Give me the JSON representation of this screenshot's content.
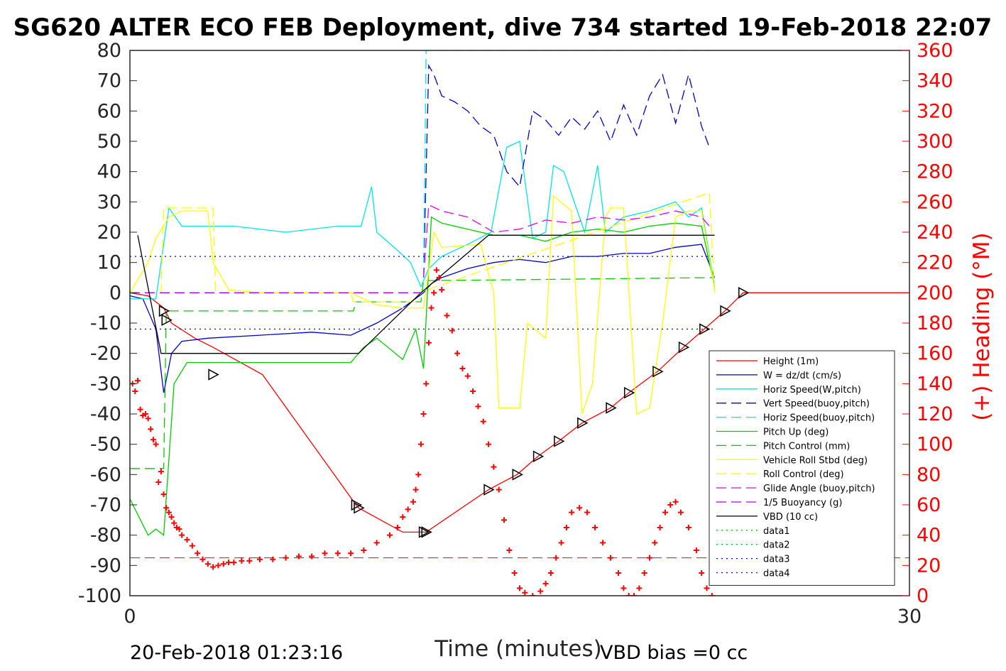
{
  "chart_data": {
    "type": "line",
    "title": "SG620 ALTER ECO FEB Deployment, dive 734 started 19-Feb-2018 22:07",
    "xlabel": "Time (minutes)",
    "ylabel_right": "(+) Heading (°M)",
    "xlim": [
      0,
      30
    ],
    "ylim_left": [
      -100,
      80
    ],
    "ylim_right": [
      0,
      360
    ],
    "x_ticks": [
      "0",
      "30"
    ],
    "y_ticks_left": [
      "80",
      "70",
      "60",
      "50",
      "40",
      "30",
      "20",
      "10",
      "0",
      "-10",
      "-20",
      "-30",
      "-40",
      "-50",
      "-60",
      "-70",
      "-80",
      "-90",
      "-100"
    ],
    "y_ticks_right": [
      "360",
      "340",
      "320",
      "300",
      "280",
      "260",
      "240",
      "220",
      "200",
      "180",
      "160",
      "140",
      "120",
      "100",
      "80",
      "60",
      "40",
      "20",
      "0"
    ],
    "footer_left": "20-Feb-2018 01:23:16",
    "footer_right": "VBD bias =0 cc",
    "legend": [
      "Height (1m)",
      "W = dz/dt (cm/s)",
      "Horiz Speed(W,pitch)",
      "Vert Speed(buoy,pitch)",
      "Horiz Speed(buoy,pitch)",
      "Pitch Up (deg)",
      "Pitch Control (mm)",
      "Vehicle Roll Stbd (deg)",
      "Roll Control (deg)",
      "Glide Angle (buoy,pitch)",
      "1/5 Buoyancy (g)",
      "VBD (10 cc)",
      "data1",
      "data2",
      "data3",
      "data4"
    ],
    "series": [
      {
        "name": "Height (1m)",
        "color": "#ff0000",
        "style": "solid",
        "x": [
          0,
          0.7,
          1.3,
          1.6,
          2.5,
          3.2,
          5.1,
          8.7,
          8.8,
          10.5,
          11.4,
          13.8,
          14.9,
          15.7,
          16.5,
          17.4,
          18.5,
          19.2,
          20.3,
          21.3,
          22.1,
          22.9,
          23.6,
          24.5,
          25.3,
          26.0,
          26.8,
          28.0,
          29.6,
          30.0
        ],
        "y": [
          0,
          -1,
          -5,
          -10,
          -15,
          -18,
          -27,
          -70,
          -71,
          -79,
          -79,
          -65,
          -60,
          -54,
          -49,
          -43,
          -38,
          -33,
          -26,
          -18,
          -12,
          -6,
          0,
          0,
          0,
          0,
          0,
          0,
          0,
          0
        ]
      },
      {
        "name": "W = dz/dt (cm/s)",
        "color": "#0000cc",
        "style": "solid",
        "x": [
          0,
          0.5,
          1.0,
          1.3,
          1.6,
          2.0,
          3.0,
          5.0,
          7.0,
          8.5,
          9.5,
          10.5,
          11.3,
          11.6,
          12.0,
          13.0,
          14.0,
          15.0,
          16.0,
          17.0,
          18.0,
          19.0,
          20.0,
          21.0,
          22.0,
          22.5
        ],
        "y": [
          -1,
          -2,
          -12,
          -33,
          -20,
          -16,
          -15,
          -14,
          -13,
          -14,
          -10,
          -5,
          0,
          3,
          5,
          8,
          10,
          11,
          10,
          12,
          12,
          13,
          13,
          15,
          16,
          5
        ]
      },
      {
        "name": "Horiz Speed(W,pitch)",
        "color": "#00e5e5",
        "style": "solid",
        "x": [
          0,
          1.0,
          1.5,
          2.0,
          4.0,
          6.0,
          8.0,
          8.9,
          9.3,
          9.5,
          10.3,
          10.8,
          11.2,
          11.5,
          12.0,
          13.0,
          13.9,
          14.5,
          15.0,
          15.5,
          16.0,
          16.3,
          16.7,
          17.5,
          18.0,
          18.3,
          19.0,
          20.0,
          21.0,
          21.5,
          22.0,
          22.5
        ],
        "y": [
          -2,
          -2,
          28,
          22,
          22,
          20,
          22,
          22,
          35,
          20,
          14,
          10,
          2,
          8,
          12,
          16,
          20,
          48,
          50,
          18,
          20,
          42,
          40,
          20,
          42,
          20,
          25,
          27,
          30,
          25,
          28,
          2
        ]
      },
      {
        "name": "Vert Speed(buoy,pitch)",
        "color": "#0000cc",
        "style": "dashed",
        "x": [
          11.3,
          11.5,
          11.7,
          12.0,
          12.5,
          13.0,
          13.5,
          14.0,
          14.5,
          15.0,
          15.5,
          16.0,
          16.5,
          17.0,
          17.5,
          18.0,
          18.5,
          19.0,
          19.5,
          20.0,
          20.5,
          21.0,
          21.5,
          22.0,
          22.3
        ],
        "y": [
          5,
          75,
          72,
          65,
          63,
          60,
          55,
          52,
          40,
          35,
          60,
          57,
          52,
          58,
          54,
          60,
          50,
          62,
          52,
          65,
          72,
          56,
          72,
          55,
          48
        ]
      },
      {
        "name": "Horiz Speed(buoy,pitch)",
        "color": "#00e5e5",
        "style": "dashed",
        "x": [
          11.3,
          11.4,
          11.5,
          22.3,
          22.5
        ],
        "y": [
          5,
          80,
          80,
          80,
          80
        ]
      },
      {
        "name": "Pitch Up (deg)",
        "color": "#00cc00",
        "style": "solid",
        "x": [
          0,
          0.7,
          1.0,
          1.3,
          1.7,
          2.2,
          3.0,
          5.0,
          7.0,
          8.5,
          9.0,
          9.5,
          10.5,
          11.0,
          11.3,
          11.6,
          12.0,
          13.0,
          14.0,
          15.0,
          16.0,
          17.0,
          18.0,
          19.0,
          20.0,
          21.0,
          22.0,
          22.5
        ],
        "y": [
          -68,
          -80,
          -78,
          -80,
          -30,
          -23,
          -23,
          -23,
          -23,
          -23,
          -18,
          -15,
          -22,
          -12,
          -25,
          25,
          23,
          21,
          19,
          19,
          17,
          20,
          21,
          20,
          22,
          23,
          22,
          2
        ]
      },
      {
        "name": "Pitch Control (mm)",
        "color": "#00cc00",
        "style": "dashed",
        "x": [
          0,
          1.3,
          1.4,
          8.6,
          8.7,
          11.2,
          11.3,
          22.5
        ],
        "y": [
          -58,
          -58,
          -6,
          -6,
          -3,
          -3,
          4,
          5
        ]
      },
      {
        "name": "Vehicle Roll Stbd (deg)",
        "color": "#ffff00",
        "style": "solid",
        "x": [
          0,
          0.7,
          1.0,
          1.5,
          2.0,
          3.0,
          3.2,
          3.8,
          5.0,
          7.0,
          8.5,
          9.5,
          10.5,
          11.3,
          11.7,
          12.0,
          13.5,
          14.0,
          14.2,
          15.0,
          15.3,
          16.0,
          16.3,
          17.0,
          17.4,
          17.8,
          18.3,
          18.5,
          19.0,
          19.5,
          20.0,
          20.5,
          21.0,
          21.5,
          22.0,
          22.5
        ],
        "y": [
          0,
          10,
          18,
          25,
          27,
          27,
          10,
          1,
          0,
          0,
          0,
          -4,
          -5,
          -5,
          20,
          15,
          16,
          0,
          -38,
          -38,
          -10,
          -15,
          32,
          27,
          -40,
          -30,
          25,
          28,
          28,
          -40,
          -38,
          -10,
          25,
          27,
          27,
          1
        ]
      },
      {
        "name": "Roll Control (deg)",
        "color": "#ffff00",
        "style": "dashed",
        "x": [
          0,
          1.2,
          1.3,
          3.2,
          3.3,
          8.5,
          8.6,
          11.0,
          11.1,
          22.3,
          22.5
        ],
        "y": [
          0,
          0,
          28,
          28,
          0,
          0,
          -3,
          -3,
          0,
          33,
          0
        ]
      },
      {
        "name": "Glide Angle (buoy,pitch)",
        "color": "#e500e5",
        "style": "dashed",
        "x": [
          11.3,
          11.5,
          12.0,
          13.0,
          14.0,
          15.0,
          16.0,
          17.0,
          18.0,
          19.0,
          20.0,
          21.0,
          22.0,
          22.3
        ],
        "y": [
          5,
          29,
          27,
          25,
          20,
          21,
          24,
          23,
          25,
          24,
          25,
          27,
          25,
          22
        ]
      },
      {
        "name": "1/5 Buoyancy (g)",
        "color": "#aa00ff",
        "style": "dashed",
        "x": [
          0,
          11.2
        ],
        "y": [
          0,
          0
        ]
      },
      {
        "name": "VBD (10 cc)",
        "color": "#000000",
        "style": "solid",
        "x": [
          0.3,
          1.2,
          8.8,
          11.2,
          13.8,
          22.5
        ],
        "y": [
          19,
          -20,
          -20,
          0,
          19,
          19
        ]
      },
      {
        "name": "data1",
        "color": "#00cc00",
        "style": "dotted",
        "x": [],
        "y": []
      },
      {
        "name": "data2",
        "color": "#00cc00",
        "style": "dotted",
        "x": [],
        "y": []
      },
      {
        "name": "data3",
        "color": "#0000cc",
        "style": "dotted",
        "x": [
          0,
          22.5
        ],
        "y": [
          12,
          12
        ]
      },
      {
        "name": "data4",
        "color": "#0000cc",
        "style": "dotted",
        "x": [
          0,
          22.5
        ],
        "y": [
          -12,
          -12
        ]
      }
    ],
    "reference_line_right": {
      "color": "#ff0000",
      "style": "dashed",
      "value": 25
    },
    "heading_right_axis": {
      "color": "#ff0000",
      "marker": "+",
      "x": [
        0.1,
        0.2,
        0.3,
        0.4,
        0.5,
        0.6,
        0.7,
        0.8,
        0.9,
        1.0,
        1.1,
        1.2,
        1.3,
        1.4,
        1.5,
        1.6,
        1.7,
        1.8,
        1.9,
        2.0,
        2.2,
        2.4,
        2.6,
        2.8,
        3.0,
        3.2,
        3.4,
        3.6,
        3.8,
        4.0,
        4.3,
        4.6,
        5.0,
        5.5,
        6.0,
        6.5,
        7.0,
        7.5,
        8.0,
        8.5,
        9.0,
        9.5,
        10.0,
        10.3,
        10.5,
        10.7,
        10.9,
        11.0,
        11.1,
        11.2,
        11.3,
        11.4,
        11.5,
        11.6,
        11.7,
        11.8,
        11.9,
        12.0,
        12.2,
        12.4,
        12.6,
        12.8,
        13.0,
        13.2,
        13.4,
        13.6,
        13.8,
        14.0,
        14.2,
        14.4,
        14.6,
        14.8,
        15.0,
        15.2,
        15.5,
        15.8,
        16.0,
        16.2,
        16.4,
        16.6,
        16.8,
        17.0,
        17.3,
        17.6,
        17.9,
        18.2,
        18.5,
        18.8,
        19.0,
        19.2,
        19.4,
        19.6,
        19.8,
        20.0,
        20.2,
        20.4,
        20.6,
        20.8,
        21.0,
        21.2,
        21.5,
        21.8,
        22.0,
        22.2,
        22.4
      ],
      "y": [
        140,
        135,
        142,
        123,
        119,
        120,
        117,
        110,
        103,
        100,
        75,
        82,
        67,
        58,
        55,
        52,
        48,
        45,
        44,
        40,
        37,
        33,
        28,
        24,
        21,
        19,
        20,
        21,
        22,
        22,
        23,
        23,
        24,
        24,
        25,
        26,
        26,
        28,
        28,
        28,
        30,
        35,
        40,
        45,
        52,
        57,
        62,
        70,
        80,
        100,
        120,
        140,
        167,
        190,
        200,
        215,
        210,
        202,
        185,
        175,
        160,
        150,
        145,
        135,
        125,
        115,
        100,
        85,
        70,
        50,
        30,
        15,
        5,
        2,
        0,
        3,
        8,
        15,
        25,
        35,
        45,
        55,
        58,
        55,
        45,
        35,
        25,
        15,
        5,
        0,
        0,
        5,
        15,
        25,
        35,
        45,
        55,
        60,
        62,
        55,
        45,
        30,
        15,
        5,
        0
      ]
    },
    "markers": {
      "x": [
        1.3,
        1.4,
        3.2,
        8.7,
        8.8,
        11.3,
        11.4,
        13.8,
        14.9,
        15.7,
        16.5,
        17.4,
        18.5,
        19.2,
        20.3,
        21.3,
        22.1,
        22.9,
        23.6
      ],
      "y": [
        -6,
        -9,
        -27,
        -70,
        -71,
        -79,
        -79,
        -65,
        -60,
        -54,
        -49,
        -43,
        -38,
        -33,
        -26,
        -18,
        -12,
        -6,
        0
      ]
    }
  }
}
